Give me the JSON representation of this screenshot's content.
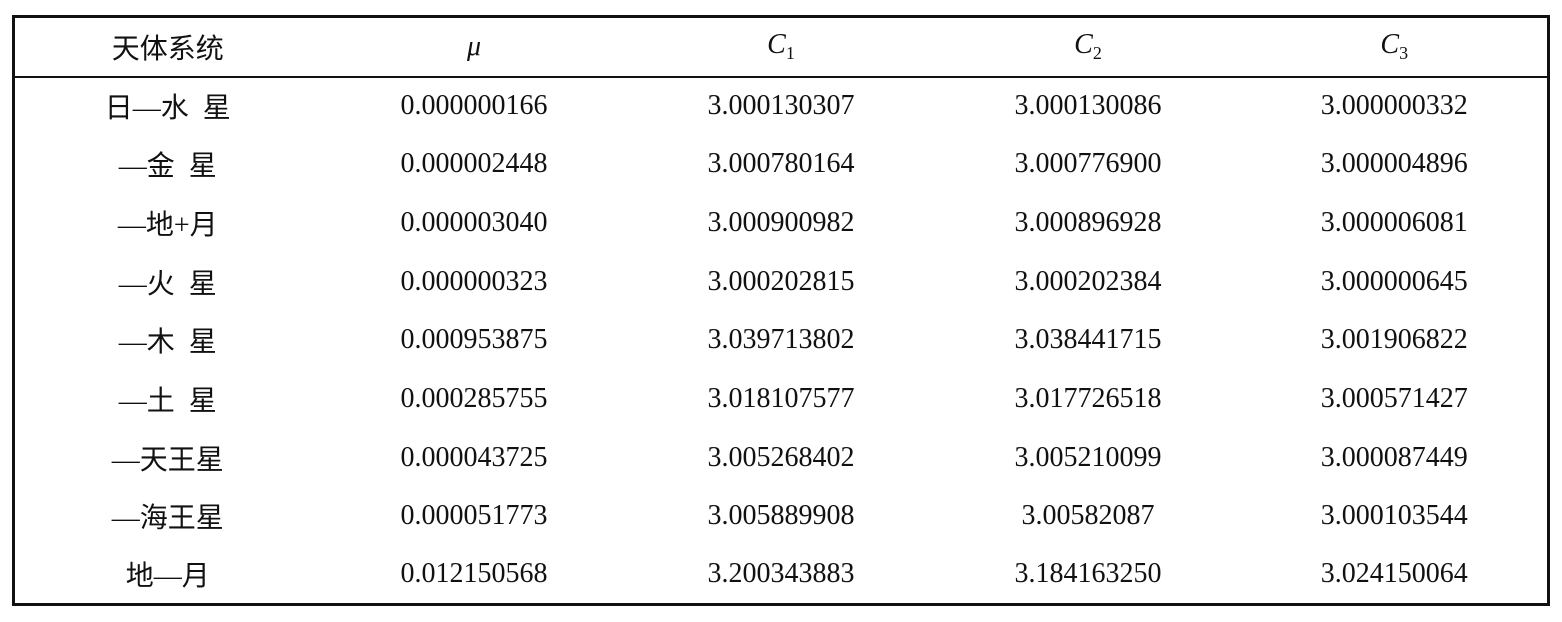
{
  "table": {
    "headers": [
      [
        "天体系统"
      ],
      [
        "μ"
      ],
      [
        "C",
        "1"
      ],
      [
        "C",
        "2"
      ],
      [
        "C",
        "3"
      ]
    ],
    "rows": [
      [
        "日—水  星",
        "0.000000166",
        "3.000130307",
        "3.000130086",
        "3.000000332"
      ],
      [
        "—金  星",
        "0.000002448",
        "3.000780164",
        "3.000776900",
        "3.000004896"
      ],
      [
        "—地+月",
        "0.000003040",
        "3.000900982",
        "3.000896928",
        "3.000006081"
      ],
      [
        "—火  星",
        "0.000000323",
        "3.000202815",
        "3.000202384",
        "3.000000645"
      ],
      [
        "—木  星",
        "0.000953875",
        "3.039713802",
        "3.038441715",
        "3.001906822"
      ],
      [
        "—土  星",
        "0.000285755",
        "3.018107577",
        "3.017726518",
        "3.000571427"
      ],
      [
        "—天王星",
        "0.000043725",
        "3.005268402",
        "3.005210099",
        "3.000087449"
      ],
      [
        "—海王星",
        "0.000051773",
        "3.005889908",
        "3.00582087",
        "3.000103544"
      ],
      [
        "地—月",
        "0.012150568",
        "3.200343883",
        "3.184163250",
        "3.024150064"
      ]
    ]
  }
}
